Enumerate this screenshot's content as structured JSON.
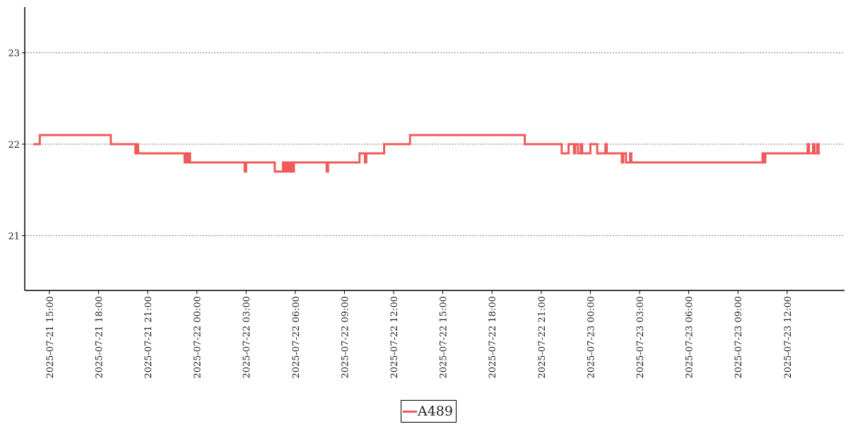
{
  "chart_data": {
    "type": "line",
    "title": "",
    "xlabel": "",
    "ylabel": "",
    "ylim": [
      20.4,
      23.5
    ],
    "xlim": [
      "2025-07-21 13:30",
      "2025-07-23 15:30"
    ],
    "y_ticks": [
      21,
      22,
      23
    ],
    "x_tick_labels": [
      "2025-07-21  15:00",
      "2025-07-21  18:00",
      "2025-07-21  21:00",
      "2025-07-22  00:00",
      "2025-07-22  03:00",
      "2025-07-22  06:00",
      "2025-07-22  09:00",
      "2025-07-22  12:00",
      "2025-07-22  15:00",
      "2025-07-22  18:00",
      "2025-07-22  21:00",
      "2025-07-23  00:00",
      "2025-07-23  03:00",
      "2025-07-23  06:00",
      "2025-07-23  09:00",
      "2025-07-23  12:00"
    ],
    "grid": "horizontal dotted",
    "legend_position": "bottom-center",
    "series": [
      {
        "name": "A489",
        "color": "#f05a5a",
        "step": true,
        "x": [
          "2025-07-21 14:00",
          "2025-07-21 14:25",
          "2025-07-21 18:45",
          "2025-07-21 20:15",
          "2025-07-21 20:20",
          "2025-07-21 20:25",
          "2025-07-21 20:30",
          "2025-07-21 23:15",
          "2025-07-21 23:20",
          "2025-07-21 23:25",
          "2025-07-21 23:30",
          "2025-07-21 23:35",
          "2025-07-21 23:40",
          "2025-07-22 02:55",
          "2025-07-22 03:00",
          "2025-07-22 04:45",
          "2025-07-22 05:15",
          "2025-07-22 05:20",
          "2025-07-22 05:25",
          "2025-07-22 05:30",
          "2025-07-22 05:35",
          "2025-07-22 05:40",
          "2025-07-22 05:45",
          "2025-07-22 05:50",
          "2025-07-22 05:55",
          "2025-07-22 06:00",
          "2025-07-22 07:55",
          "2025-07-22 08:00",
          "2025-07-22 09:55",
          "2025-07-22 10:15",
          "2025-07-22 10:20",
          "2025-07-22 11:25",
          "2025-07-22 13:00",
          "2025-07-22 13:10",
          "2025-07-22 20:00",
          "2025-07-22 22:15",
          "2025-07-22 22:40",
          "2025-07-22 23:00",
          "2025-07-22 23:05",
          "2025-07-22 23:15",
          "2025-07-22 23:25",
          "2025-07-22 23:30",
          "2025-07-23 00:00",
          "2025-07-23 00:25",
          "2025-07-23 00:55",
          "2025-07-23 01:00",
          "2025-07-23 01:55",
          "2025-07-23 02:00",
          "2025-07-23 02:10",
          "2025-07-23 02:25",
          "2025-07-23 02:30",
          "2025-07-23 10:30",
          "2025-07-23 10:35",
          "2025-07-23 10:40",
          "2025-07-23 13:15",
          "2025-07-23 13:20",
          "2025-07-23 13:35",
          "2025-07-23 13:40",
          "2025-07-23 13:50",
          "2025-07-23 13:55",
          "2025-07-23 14:00"
        ],
        "values": [
          22.0,
          22.1,
          22.0,
          21.9,
          22.0,
          21.9,
          21.9,
          21.8,
          21.9,
          21.8,
          21.9,
          21.8,
          21.8,
          21.7,
          21.8,
          21.7,
          21.8,
          21.7,
          21.8,
          21.7,
          21.8,
          21.7,
          21.8,
          21.7,
          21.8,
          21.8,
          21.7,
          21.8,
          21.9,
          21.8,
          21.9,
          22.0,
          22.1,
          22.1,
          22.0,
          21.9,
          22.0,
          21.9,
          22.0,
          21.9,
          22.0,
          21.9,
          22.0,
          21.9,
          22.0,
          21.9,
          21.8,
          21.9,
          21.8,
          21.9,
          21.8,
          21.9,
          21.8,
          21.9,
          22.0,
          21.9,
          22.0,
          21.9,
          22.0,
          21.9,
          21.9
        ]
      }
    ]
  }
}
